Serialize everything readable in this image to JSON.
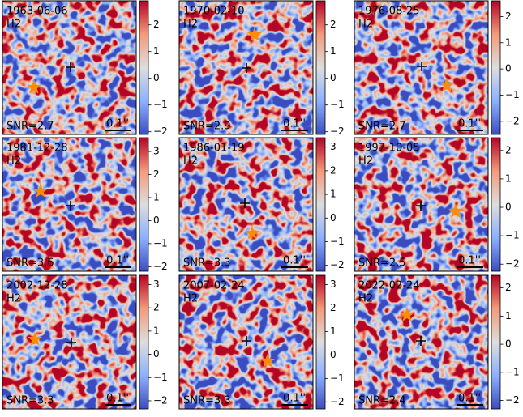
{
  "chart_data": [
    {
      "type": "image",
      "date": "1963-06-06",
      "band": "H2",
      "annotation": "SNR=2.7",
      "scale_bar_label": "0.1''",
      "colorbar": {
        "lim": [
          -2.1,
          2.9
        ],
        "ticks": [
          {
            "value": -2,
            "label": "−2"
          },
          {
            "value": -1,
            "label": "−1"
          },
          0,
          1,
          2
        ]
      }
    },
    {
      "type": "image",
      "date": "1970-02-10",
      "band": "H2",
      "annotation": "SNR=2.9",
      "scale_bar_label": "0.1''",
      "colorbar": {
        "lim": [
          -2.1,
          2.9
        ],
        "ticks": [
          {
            "value": -2,
            "label": "−2"
          },
          {
            "value": -1,
            "label": "−1"
          },
          0,
          1,
          2
        ]
      }
    },
    {
      "type": "image",
      "date": "1976-08-25",
      "band": "H2",
      "annotation": "SNR=2.7",
      "scale_bar_label": "0.1''",
      "colorbar": {
        "lim": [
          -2.5,
          2.6
        ],
        "ticks": [
          {
            "value": -2,
            "label": "−2"
          },
          {
            "value": -1,
            "label": "−1"
          },
          0,
          1,
          2
        ]
      }
    },
    {
      "type": "image",
      "date": "1981-12-28",
      "band": "H2",
      "annotation": "SNR=3.6",
      "scale_bar_label": "0.1''",
      "colorbar": {
        "lim": [
          -2.2,
          3.6
        ],
        "ticks": [
          {
            "value": -2,
            "label": "−2"
          },
          {
            "value": -1,
            "label": "−1"
          },
          0,
          1,
          2,
          3
        ]
      }
    },
    {
      "type": "image",
      "date": "1986-01-19",
      "band": "H2",
      "annotation": "SNR=3.3",
      "scale_bar_label": "0.1''",
      "colorbar": {
        "lim": [
          -2.25,
          3.4
        ],
        "ticks": [
          {
            "value": -2,
            "label": "−2"
          },
          {
            "value": -1,
            "label": "−1"
          },
          0,
          1,
          2,
          3
        ]
      }
    },
    {
      "type": "image",
      "date": "1997-10-05",
      "band": "H2",
      "annotation": "SNR=2.5",
      "scale_bar_label": "0.1''",
      "colorbar": {
        "lim": [
          -2.25,
          2.45
        ],
        "ticks": [
          {
            "value": -2,
            "label": "−2"
          },
          {
            "value": -1,
            "label": "−1"
          },
          0,
          1,
          2
        ]
      }
    },
    {
      "type": "image",
      "date": "2002-12-28",
      "band": "H2",
      "annotation": "SNR=3.3",
      "scale_bar_label": "0.1''",
      "colorbar": {
        "lim": [
          -2.35,
          3.4
        ],
        "ticks": [
          {
            "value": -2,
            "label": "−2"
          },
          {
            "value": -1,
            "label": "−1"
          },
          0,
          1,
          2,
          3
        ]
      }
    },
    {
      "type": "image",
      "date": "2007-02-24",
      "band": "H2",
      "annotation": "SNR=3.3",
      "scale_bar_label": "0.1''",
      "colorbar": {
        "lim": [
          -2.3,
          3.4
        ],
        "ticks": [
          {
            "value": -2,
            "label": "−2"
          },
          {
            "value": -1,
            "label": "−1"
          },
          0,
          1,
          2,
          3
        ]
      }
    },
    {
      "type": "image",
      "date": "2022-02-24",
      "band": "H2",
      "annotation": "SNR=2.4",
      "scale_bar_label": "0.1''",
      "colorbar": {
        "lim": [
          -2.3,
          2.45
        ],
        "ticks": [
          {
            "value": -2,
            "label": "−2"
          },
          {
            "value": -1,
            "label": "−1"
          },
          0,
          1,
          2
        ]
      }
    }
  ]
}
